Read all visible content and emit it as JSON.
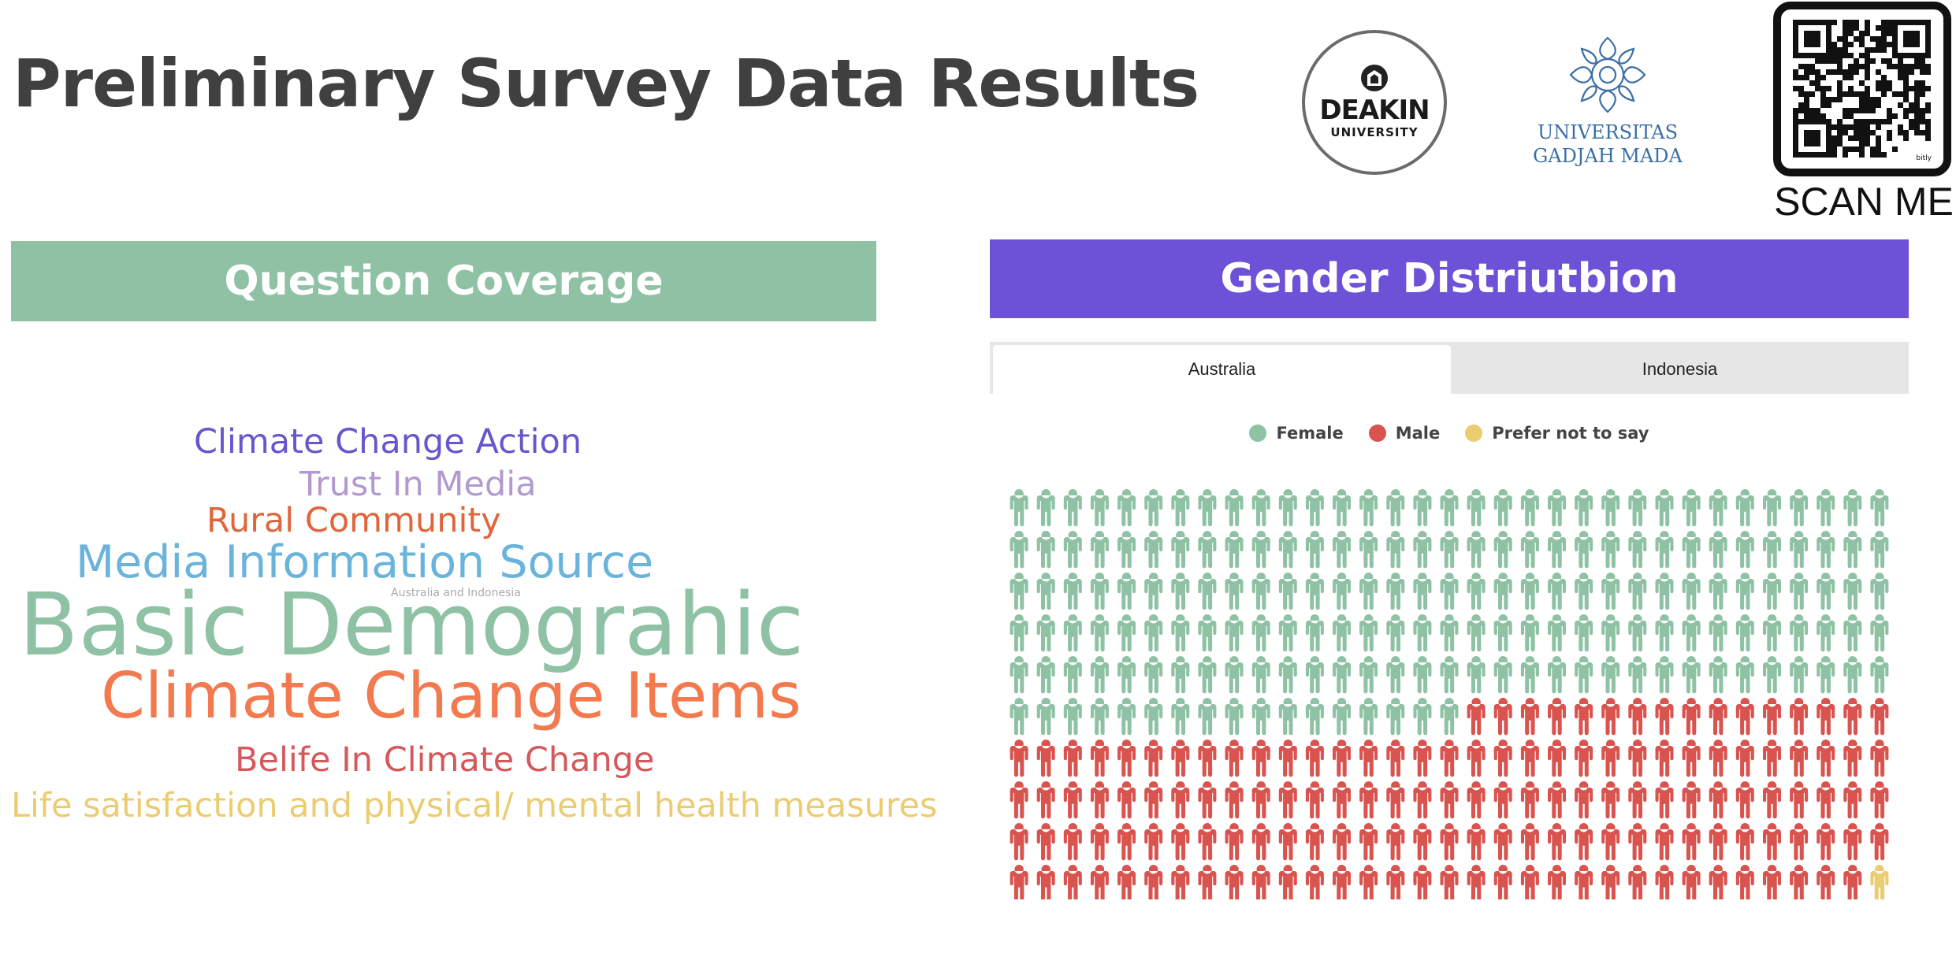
{
  "header": {
    "title": "Preliminary Survey Data Results",
    "deakin_name": "DEAKIN",
    "deakin_sub": "UNIVERSITY",
    "ugm_name_line1": "UNIVERSITAS",
    "ugm_name_line2": "GADJAH MADA",
    "qr_brand": "bitly",
    "scan_label": "SCAN ME"
  },
  "question_coverage": {
    "title": "Question Coverage",
    "subtitle": "Australia and Indonesia",
    "words": [
      {
        "text": "Climate Change Action",
        "color": "#6a55cc"
      },
      {
        "text": "Trust In Media",
        "color": "#b29ad0"
      },
      {
        "text": "Rural Community",
        "color": "#e0653a"
      },
      {
        "text": "Media Information Source",
        "color": "#6ab4dc"
      },
      {
        "text": "Basic Demograhic",
        "color": "#8fc2a4"
      },
      {
        "text": "Climate Change Items",
        "color": "#f27a4e"
      },
      {
        "text": "Belife In Climate Change",
        "color": "#d4595d"
      },
      {
        "text": "Life satisfaction and physical/ mental health measures",
        "color": "#eccc70"
      }
    ]
  },
  "gender_distribution": {
    "title": "Gender Distriutbion",
    "tabs": [
      {
        "label": "Australia",
        "active": true
      },
      {
        "label": "Indonesia",
        "active": false
      }
    ],
    "legend": [
      {
        "label": "Female",
        "color": "#8fc2a4"
      },
      {
        "label": "Male",
        "color": "#d9534f"
      },
      {
        "label": "Prefer not to say",
        "color": "#eccc70"
      }
    ]
  },
  "chart_data": {
    "type": "waffle",
    "rows": 10,
    "columns": 33,
    "series": [
      {
        "name": "Female",
        "value": 182,
        "color": "#8fc2a4"
      },
      {
        "name": "Male",
        "value": 147,
        "color": "#d9534f"
      },
      {
        "name": "Prefer not to say",
        "value": 1,
        "color": "#eccc70"
      }
    ]
  }
}
